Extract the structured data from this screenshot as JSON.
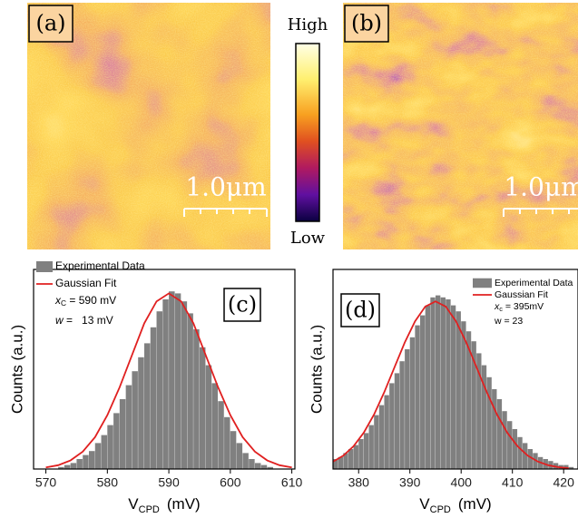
{
  "images": [
    {
      "label": "(a)",
      "scale_bar": "1.0μm"
    },
    {
      "label": "(b)",
      "scale_bar": "1.0μm"
    }
  ],
  "colorbar": {
    "high": "High",
    "low": "Low"
  },
  "chart_data": [
    {
      "type": "histogram",
      "panel_label": "(c)",
      "x_label": {
        "text": "V",
        "sub": "CPD",
        "unit": "(mV)"
      },
      "y_label": "Counts (a.u.)",
      "xlim": [
        568,
        610.5
      ],
      "xticks": [
        570,
        580,
        590,
        600,
        610
      ],
      "ylim": [
        0,
        100
      ],
      "series": [
        {
          "name": "Experimental Data",
          "color": "#808080",
          "bins": [
            570,
            571,
            572,
            573,
            574,
            575,
            576,
            577,
            578,
            579,
            580,
            581,
            582,
            583,
            584,
            585,
            586,
            587,
            588,
            589,
            590,
            591,
            592,
            593,
            594,
            595,
            596,
            597,
            598,
            599,
            600,
            601,
            602,
            603,
            604,
            605,
            606,
            607,
            608,
            609,
            610
          ],
          "values": [
            0,
            0,
            1,
            2,
            3,
            5,
            7,
            9,
            13,
            17,
            22,
            28,
            35,
            42,
            49,
            56,
            63,
            71,
            79,
            85,
            89,
            88,
            84,
            78,
            70,
            61,
            52,
            43,
            34,
            26,
            19,
            13,
            8,
            5,
            3,
            2,
            1,
            0,
            0,
            0
          ]
        },
        {
          "name": "Gaussian Fit",
          "color": "#e02020",
          "x": [
            570,
            572,
            574,
            576,
            578,
            580,
            582,
            584,
            586,
            588,
            590,
            592,
            594,
            596,
            598,
            600,
            602,
            604,
            606,
            608,
            610
          ],
          "values": [
            0.8,
            1.9,
            4.3,
            8.7,
            16,
            27,
            41,
            57,
            73,
            84,
            88,
            84,
            73,
            57,
            41,
            27,
            16,
            8.7,
            4.3,
            1.9,
            0.8
          ]
        }
      ],
      "annotations": [
        {
          "text": "x",
          "sub": "C",
          "rest": " = 590 mV"
        },
        {
          "text": "w",
          "rest": " =   13 mV"
        }
      ]
    },
    {
      "type": "histogram",
      "panel_label": "(d)",
      "x_label": {
        "text": "V",
        "sub": "CPD",
        "unit": "(mV)"
      },
      "y_label": "Counts (a.u.)",
      "xlim": [
        375,
        422.8
      ],
      "xticks": [
        380,
        390,
        400,
        410,
        420
      ],
      "ylim": [
        0,
        100
      ],
      "series": [
        {
          "name": "Experimental Data",
          "color": "#808080",
          "bins": [
            375,
            376,
            377,
            378,
            379,
            380,
            381,
            382,
            383,
            384,
            385,
            386,
            387,
            388,
            389,
            390,
            391,
            392,
            393,
            394,
            395,
            396,
            397,
            398,
            399,
            400,
            401,
            402,
            403,
            404,
            405,
            406,
            407,
            408,
            409,
            410,
            411,
            412,
            413,
            414,
            415,
            416,
            417,
            418,
            419,
            420,
            421,
            422
          ],
          "values": [
            5,
            6,
            8,
            10,
            12,
            15,
            18,
            22,
            27,
            32,
            37,
            43,
            48,
            54,
            60,
            66,
            72,
            77,
            82,
            86,
            87,
            86,
            85,
            82,
            79,
            74,
            69,
            64,
            58,
            52,
            46,
            40,
            35,
            29,
            24,
            20,
            16,
            13,
            10,
            8,
            6,
            5,
            4,
            3,
            2,
            2,
            1
          ]
        },
        {
          "name": "Gaussian Fit",
          "color": "#e02020",
          "x": [
            375,
            377,
            379,
            381,
            383,
            385,
            387,
            389,
            391,
            393,
            395,
            397,
            399,
            401,
            403,
            405,
            407,
            409,
            411,
            413,
            415,
            417,
            419,
            421
          ],
          "values": [
            3.7,
            6.7,
            11.4,
            18.2,
            27.3,
            38.5,
            51,
            63.4,
            74,
            81.4,
            84,
            81.4,
            74,
            63.4,
            51,
            38.5,
            27.3,
            18.2,
            11.4,
            6.7,
            3.7,
            1.9,
            0.9,
            0.4
          ]
        }
      ],
      "annotations": [
        {
          "text": "x",
          "sub": "c",
          "rest": " = 395mV"
        },
        {
          "text": "w = 23"
        }
      ]
    }
  ]
}
